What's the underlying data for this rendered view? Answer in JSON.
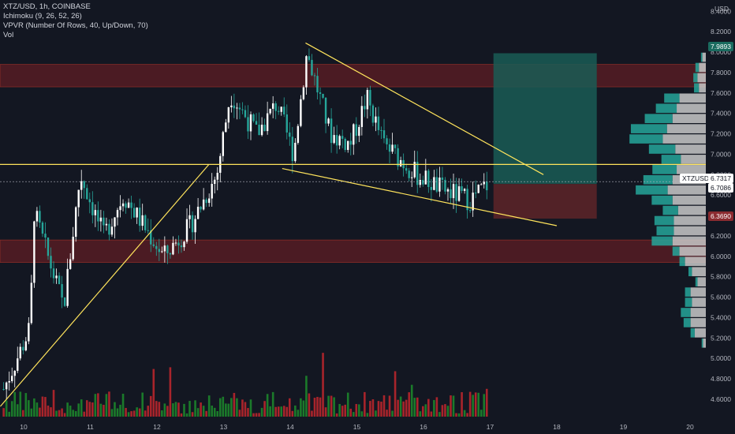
{
  "legend": {
    "symbol_line": "XTZ/USD, 1h, COINBASE",
    "indicator_1": "Ichimoku (9, 26, 52, 26)",
    "indicator_2": "VPVR (Number Of Rows, 40, Up/Down, 70)",
    "indicator_3": "Vol"
  },
  "colors": {
    "background": "#131722",
    "up": "#ffffff",
    "down": "#26a69a",
    "vol_up": "#1b7a2a",
    "vol_down": "#a8242b",
    "zone": "#7a1f24",
    "trendline": "#ffe45c",
    "vp_up": "#26a69a",
    "vp_down": "#c9c9c9",
    "target": "#1a5c55",
    "stop": "#5a2328"
  },
  "price_tags": {
    "target": "7.9893",
    "last_label": "XTZUSD",
    "last_value": "6.7317",
    "close": "6.7086",
    "stop": "6.3690"
  },
  "chart_data": {
    "type": "candlestick",
    "symbol": "XTZ/USD",
    "interval": "1h",
    "exchange": "COINBASE",
    "y_axis_ticks": [
      "8.4000",
      "8.2000",
      "8.0000",
      "7.8000",
      "7.6000",
      "7.4000",
      "7.2000",
      "7.0000",
      "6.8000",
      "6.6000",
      "6.4000",
      "6.2000",
      "6.0000",
      "5.8000",
      "5.6000",
      "5.4000",
      "5.2000",
      "5.0000",
      "4.8000",
      "4.6000"
    ],
    "y_axis_unit": "USD",
    "ylim": [
      4.53,
      8.48
    ],
    "x_axis_ticks": [
      "10",
      "11",
      "12",
      "13",
      "14",
      "15",
      "16",
      "17",
      "18",
      "19",
      "20"
    ],
    "key_points": [
      {
        "day": 9.7,
        "price": 4.7
      },
      {
        "day": 10.1,
        "price": 5.3
      },
      {
        "day": 10.15,
        "price": 6.45
      },
      {
        "day": 10.6,
        "price": 5.5
      },
      {
        "day": 10.85,
        "price": 6.8
      },
      {
        "day": 11.2,
        "price": 6.2
      },
      {
        "day": 11.5,
        "price": 6.6
      },
      {
        "day": 12.1,
        "price": 6.0
      },
      {
        "day": 12.5,
        "price": 6.3
      },
      {
        "day": 12.9,
        "price": 6.8
      },
      {
        "day": 13.1,
        "price": 7.6
      },
      {
        "day": 13.5,
        "price": 7.2
      },
      {
        "day": 13.8,
        "price": 7.5
      },
      {
        "day": 14.05,
        "price": 7.0
      },
      {
        "day": 14.25,
        "price": 8.0
      },
      {
        "day": 14.6,
        "price": 7.2
      },
      {
        "day": 14.9,
        "price": 7.1
      },
      {
        "day": 15.15,
        "price": 7.55
      },
      {
        "day": 15.4,
        "price": 7.1
      },
      {
        "day": 15.9,
        "price": 6.8
      },
      {
        "day": 16.3,
        "price": 6.65
      },
      {
        "day": 16.7,
        "price": 6.55
      },
      {
        "day": 16.95,
        "price": 6.7
      }
    ],
    "zones": [
      {
        "from": 7.66,
        "to": 7.88
      },
      {
        "from": 5.94,
        "to": 6.16
      }
    ],
    "horizontal_line": 6.9,
    "trendlines": [
      {
        "from": [
          9.65,
          4.53
        ],
        "to": [
          12.78,
          6.9
        ]
      },
      {
        "from": [
          14.23,
          8.09
        ],
        "to": [
          17.8,
          6.8
        ]
      },
      {
        "from": [
          13.88,
          6.86
        ],
        "to": [
          18.0,
          6.3
        ]
      }
    ],
    "position": {
      "entry": 6.7086,
      "target": 7.9893,
      "stop": 6.369,
      "from_day": 17.05,
      "to_day": 18.6
    },
    "last_price": 6.7317,
    "volume_profile": [
      {
        "price": 7.95,
        "up": 0.02,
        "down": 0.05
      },
      {
        "price": 7.85,
        "up": 0.05,
        "down": 0.1
      },
      {
        "price": 7.75,
        "up": 0.06,
        "down": 0.12
      },
      {
        "price": 7.65,
        "up": 0.07,
        "down": 0.1
      },
      {
        "price": 7.55,
        "up": 0.22,
        "down": 0.38
      },
      {
        "price": 7.45,
        "up": 0.3,
        "down": 0.42
      },
      {
        "price": 7.35,
        "up": 0.4,
        "down": 0.48
      },
      {
        "price": 7.25,
        "up": 0.52,
        "down": 0.56
      },
      {
        "price": 7.15,
        "up": 0.48,
        "down": 0.62
      },
      {
        "price": 7.05,
        "up": 0.38,
        "down": 0.44
      },
      {
        "price": 6.95,
        "up": 0.28,
        "down": 0.36
      },
      {
        "price": 6.85,
        "up": 0.35,
        "down": 0.42
      },
      {
        "price": 6.75,
        "up": 0.42,
        "down": 0.48
      },
      {
        "price": 6.65,
        "up": 0.46,
        "down": 0.55
      },
      {
        "price": 6.55,
        "up": 0.3,
        "down": 0.48
      },
      {
        "price": 6.45,
        "up": 0.22,
        "down": 0.4
      },
      {
        "price": 6.35,
        "up": 0.28,
        "down": 0.46
      },
      {
        "price": 6.25,
        "up": 0.25,
        "down": 0.46
      },
      {
        "price": 6.15,
        "up": 0.3,
        "down": 0.48
      },
      {
        "price": 6.05,
        "up": 0.1,
        "down": 0.38
      },
      {
        "price": 5.95,
        "up": 0.08,
        "down": 0.3
      },
      {
        "price": 5.85,
        "up": 0.05,
        "down": 0.2
      },
      {
        "price": 5.75,
        "up": 0.03,
        "down": 0.12
      },
      {
        "price": 5.65,
        "up": 0.08,
        "down": 0.22
      },
      {
        "price": 5.55,
        "up": 0.1,
        "down": 0.2
      },
      {
        "price": 5.45,
        "up": 0.14,
        "down": 0.22
      },
      {
        "price": 5.35,
        "up": 0.1,
        "down": 0.22
      },
      {
        "price": 5.25,
        "up": 0.06,
        "down": 0.16
      },
      {
        "price": 5.15,
        "up": 0.02,
        "down": 0.04
      }
    ]
  }
}
